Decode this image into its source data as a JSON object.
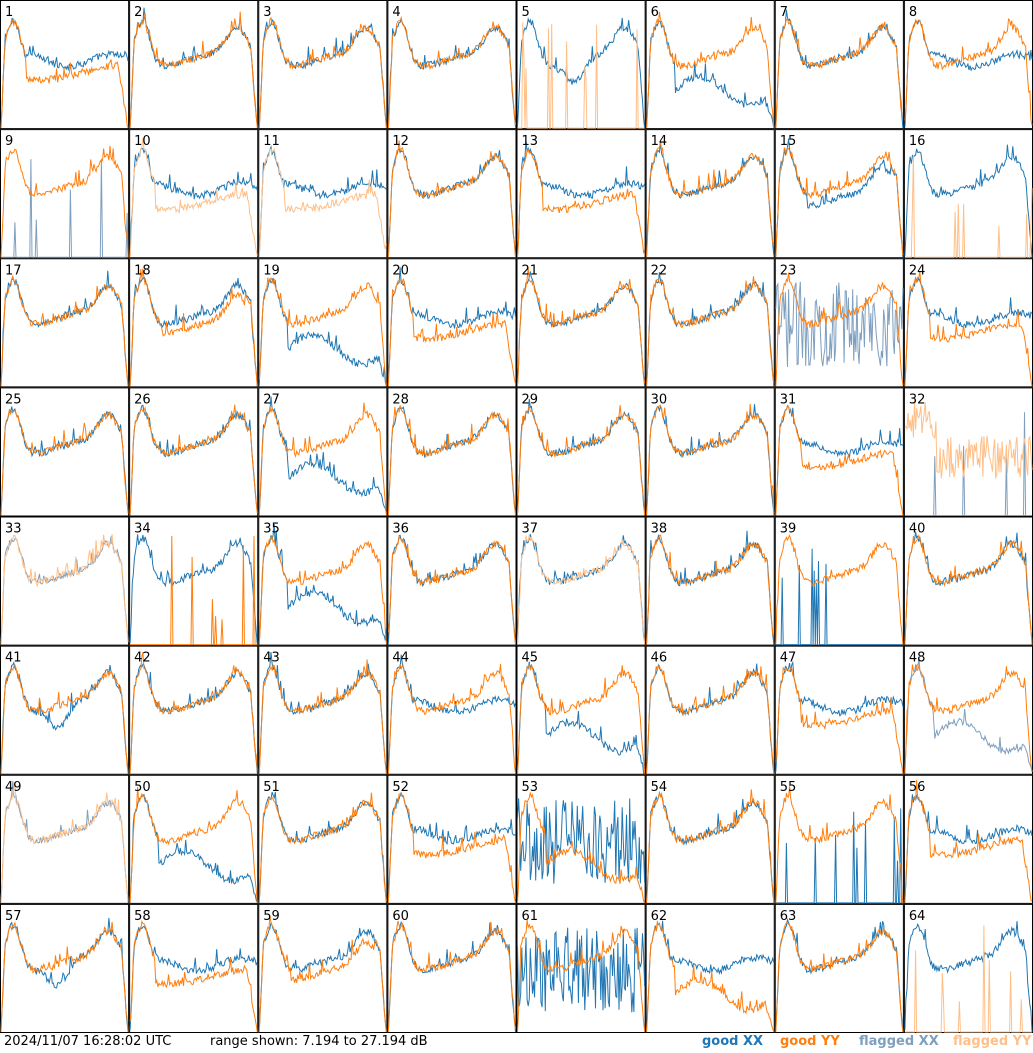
{
  "timestamp": "2024/11/07 16:28:02 UTC",
  "range_text": "range shown: 7.194 to 27.194 dB",
  "legend": {
    "good_xx": "good XX",
    "good_yy": "good YY",
    "flagged_xx": "flagged XX",
    "flagged_yy": "flagged YY"
  },
  "colors": {
    "good_xx": "#1f77b4",
    "good_yy": "#ff7f0e",
    "flagged_xx": "#7f9fbf",
    "flagged_yy": "#ffbf87"
  },
  "chart_data": {
    "type": "line",
    "grid": {
      "rows": 8,
      "cols": 8
    },
    "ylim": [
      7.194,
      27.194
    ],
    "yunit": "dB",
    "shape_key": {
      "N": "normal bandpass: XX and YY overlap",
      "L": "XX baseline sits below YY in the middle",
      "H": "XX sits above YY, YY sags in the middle",
      "D": "dip in the middle band",
      "W": "XX drops into a low wave",
      "Y": "YY drops into a low wave",
      "S": "XX spiky / noisy",
      "T": "YY spiky / noisy",
      "Z": "mostly empty with a few spikes"
    },
    "tiles": [
      {
        "n": "1",
        "xx": "H",
        "yy": "Y",
        "xf": false,
        "yf": false
      },
      {
        "n": "2",
        "xx": "N",
        "yy": "N",
        "xf": false,
        "yf": false
      },
      {
        "n": "3",
        "xx": "N",
        "yy": "N",
        "xf": false,
        "yf": false
      },
      {
        "n": "4",
        "xx": "N",
        "yy": "N",
        "xf": false,
        "yf": false
      },
      {
        "n": "5",
        "xx": "D",
        "yy": "Z",
        "xf": false,
        "yf": true
      },
      {
        "n": "6",
        "xx": "W",
        "yy": "N",
        "xf": false,
        "yf": false
      },
      {
        "n": "7",
        "xx": "N",
        "yy": "N",
        "xf": false,
        "yf": false
      },
      {
        "n": "8",
        "xx": "H",
        "yy": "N",
        "xf": false,
        "yf": false
      },
      {
        "n": "9",
        "xx": "Z",
        "yy": "N",
        "xf": true,
        "yf": false
      },
      {
        "n": "10",
        "xx": "H",
        "yy": "Y",
        "xf": false,
        "yf": true
      },
      {
        "n": "11",
        "xx": "H",
        "yy": "Y",
        "xf": false,
        "yf": true
      },
      {
        "n": "12",
        "xx": "N",
        "yy": "N",
        "xf": false,
        "yf": false
      },
      {
        "n": "13",
        "xx": "H",
        "yy": "Y",
        "xf": false,
        "yf": false
      },
      {
        "n": "14",
        "xx": "N",
        "yy": "N",
        "xf": false,
        "yf": false
      },
      {
        "n": "15",
        "xx": "L",
        "yy": "N",
        "xf": false,
        "yf": false
      },
      {
        "n": "16",
        "xx": "N",
        "yy": "Z",
        "xf": false,
        "yf": true
      },
      {
        "n": "17",
        "xx": "N",
        "yy": "N",
        "xf": false,
        "yf": false
      },
      {
        "n": "18",
        "xx": "N",
        "yy": "L",
        "xf": false,
        "yf": false
      },
      {
        "n": "19",
        "xx": "W",
        "yy": "N",
        "xf": false,
        "yf": false
      },
      {
        "n": "20",
        "xx": "H",
        "yy": "Y",
        "xf": false,
        "yf": false
      },
      {
        "n": "21",
        "xx": "N",
        "yy": "N",
        "xf": false,
        "yf": false
      },
      {
        "n": "22",
        "xx": "N",
        "yy": "N",
        "xf": false,
        "yf": false
      },
      {
        "n": "23",
        "xx": "S",
        "yy": "N",
        "xf": true,
        "yf": false
      },
      {
        "n": "24",
        "xx": "H",
        "yy": "Y",
        "xf": false,
        "yf": false
      },
      {
        "n": "25",
        "xx": "N",
        "yy": "N",
        "xf": false,
        "yf": false
      },
      {
        "n": "26",
        "xx": "N",
        "yy": "N",
        "xf": false,
        "yf": false
      },
      {
        "n": "27",
        "xx": "W",
        "yy": "N",
        "xf": false,
        "yf": false
      },
      {
        "n": "28",
        "xx": "N",
        "yy": "N",
        "xf": false,
        "yf": false
      },
      {
        "n": "29",
        "xx": "N",
        "yy": "N",
        "xf": false,
        "yf": false
      },
      {
        "n": "30",
        "xx": "N",
        "yy": "N",
        "xf": false,
        "yf": false
      },
      {
        "n": "31",
        "xx": "H",
        "yy": "Y",
        "xf": false,
        "yf": false
      },
      {
        "n": "32",
        "xx": "Z",
        "yy": "T",
        "xf": true,
        "yf": true
      },
      {
        "n": "33",
        "xx": "N",
        "yy": "N",
        "xf": true,
        "yf": true
      },
      {
        "n": "34",
        "xx": "N",
        "yy": "Z",
        "xf": false,
        "yf": false
      },
      {
        "n": "35",
        "xx": "W",
        "yy": "N",
        "xf": false,
        "yf": false
      },
      {
        "n": "36",
        "xx": "N",
        "yy": "N",
        "xf": false,
        "yf": false
      },
      {
        "n": "37",
        "xx": "N",
        "yy": "N",
        "xf": false,
        "yf": true
      },
      {
        "n": "38",
        "xx": "N",
        "yy": "N",
        "xf": false,
        "yf": false
      },
      {
        "n": "39",
        "xx": "Z",
        "yy": "N",
        "xf": false,
        "yf": false
      },
      {
        "n": "40",
        "xx": "N",
        "yy": "N",
        "xf": false,
        "yf": false
      },
      {
        "n": "41",
        "xx": "D",
        "yy": "N",
        "xf": false,
        "yf": false
      },
      {
        "n": "42",
        "xx": "N",
        "yy": "N",
        "xf": false,
        "yf": false
      },
      {
        "n": "43",
        "xx": "N",
        "yy": "N",
        "xf": false,
        "yf": false
      },
      {
        "n": "44",
        "xx": "H",
        "yy": "N",
        "xf": false,
        "yf": false
      },
      {
        "n": "45",
        "xx": "W",
        "yy": "N",
        "xf": false,
        "yf": false
      },
      {
        "n": "46",
        "xx": "N",
        "yy": "N",
        "xf": false,
        "yf": false
      },
      {
        "n": "47",
        "xx": "H",
        "yy": "Y",
        "xf": false,
        "yf": false
      },
      {
        "n": "48",
        "xx": "W",
        "yy": "N",
        "xf": true,
        "yf": false
      },
      {
        "n": "49",
        "xx": "N",
        "yy": "N",
        "xf": true,
        "yf": true
      },
      {
        "n": "50",
        "xx": "W",
        "yy": "N",
        "xf": false,
        "yf": false
      },
      {
        "n": "51",
        "xx": "N",
        "yy": "N",
        "xf": false,
        "yf": false
      },
      {
        "n": "52",
        "xx": "H",
        "yy": "Y",
        "xf": false,
        "yf": false
      },
      {
        "n": "53",
        "xx": "S",
        "yy": "W",
        "xf": false,
        "yf": false
      },
      {
        "n": "54",
        "xx": "N",
        "yy": "N",
        "xf": false,
        "yf": false
      },
      {
        "n": "55",
        "xx": "Z",
        "yy": "N",
        "xf": false,
        "yf": false
      },
      {
        "n": "56",
        "xx": "H",
        "yy": "Y",
        "xf": false,
        "yf": false
      },
      {
        "n": "57",
        "xx": "D",
        "yy": "N",
        "xf": false,
        "yf": false
      },
      {
        "n": "58",
        "xx": "H",
        "yy": "Y",
        "xf": false,
        "yf": false
      },
      {
        "n": "59",
        "xx": "N",
        "yy": "L",
        "xf": false,
        "yf": false
      },
      {
        "n": "60",
        "xx": "N",
        "yy": "N",
        "xf": false,
        "yf": false
      },
      {
        "n": "61",
        "xx": "S",
        "yy": "N",
        "xf": false,
        "yf": false
      },
      {
        "n": "62",
        "xx": "H",
        "yy": "W",
        "xf": false,
        "yf": false
      },
      {
        "n": "63",
        "xx": "N",
        "yy": "N",
        "xf": false,
        "yf": false
      },
      {
        "n": "64",
        "xx": "N",
        "yy": "Z",
        "xf": false,
        "yf": true
      }
    ]
  }
}
